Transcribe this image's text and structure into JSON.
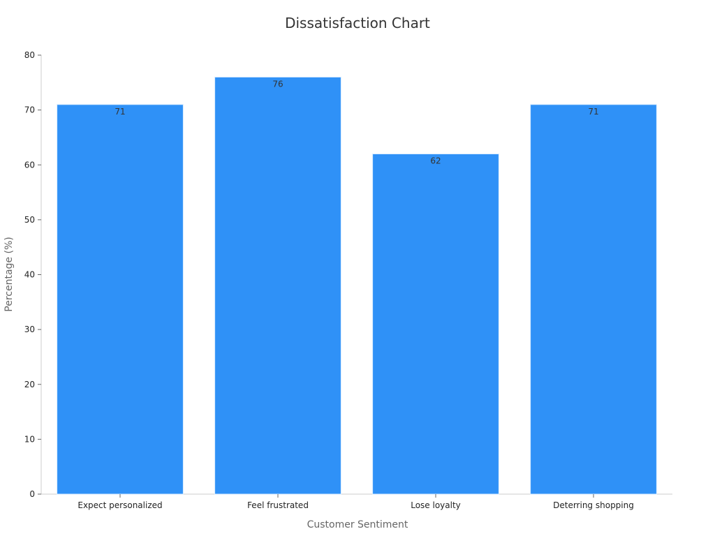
{
  "chart_data": {
    "type": "bar",
    "title": "Dissatisfaction Chart",
    "xlabel": "Customer Sentiment",
    "ylabel": "Percentage (%)",
    "categories": [
      "Expect personalized",
      "Feel frustrated",
      "Lose loyalty",
      "Deterring shopping"
    ],
    "values": [
      71,
      76,
      62,
      71
    ],
    "data_labels": [
      "71",
      "76",
      "62",
      "71"
    ],
    "ylim": [
      0,
      80
    ],
    "yticks": [
      0,
      10,
      20,
      30,
      40,
      50,
      60,
      70,
      80
    ],
    "bar_color": "#2f91f7",
    "grid": false,
    "legend": "none"
  }
}
